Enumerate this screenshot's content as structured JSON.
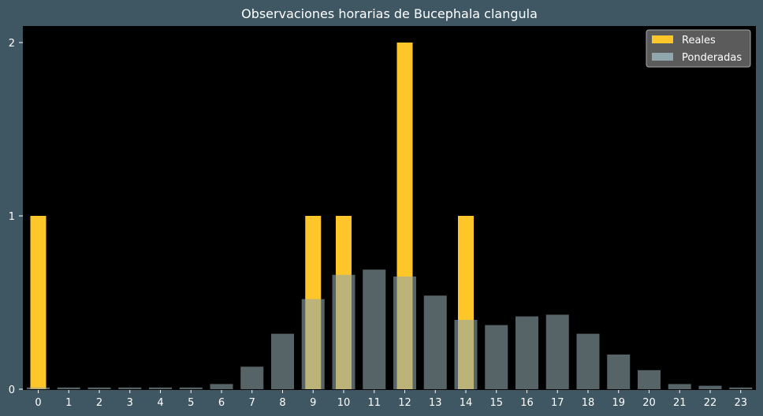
{
  "chart_data": {
    "type": "bar",
    "title": "Observaciones horarias de Bucephala clangula",
    "xlabel": "",
    "ylabel": "",
    "categories": [
      "0",
      "1",
      "2",
      "3",
      "4",
      "5",
      "6",
      "7",
      "8",
      "9",
      "10",
      "11",
      "12",
      "13",
      "14",
      "15",
      "16",
      "17",
      "18",
      "19",
      "20",
      "21",
      "22",
      "23"
    ],
    "ylim": [
      0,
      2.1
    ],
    "yticks": [
      0,
      1,
      2
    ],
    "grid": false,
    "legend_position": "top-right",
    "series": [
      {
        "name": "Reales",
        "color": "#ffc629",
        "values": [
          1,
          0,
          0,
          0,
          0,
          0,
          0,
          0,
          0,
          1,
          1,
          0,
          2,
          0,
          1,
          0,
          0,
          0,
          0,
          0,
          0,
          0,
          0,
          0
        ]
      },
      {
        "name": "Ponderadas",
        "color": "#8fa6ad",
        "values": [
          0.01,
          0.01,
          0.01,
          0.01,
          0.01,
          0.01,
          0.03,
          0.13,
          0.32,
          0.52,
          0.66,
          0.69,
          0.65,
          0.54,
          0.4,
          0.37,
          0.42,
          0.43,
          0.32,
          0.2,
          0.11,
          0.03,
          0.02,
          0.01
        ]
      }
    ]
  },
  "colors": {
    "background": "#3e5763",
    "plot_background": "#000000"
  }
}
